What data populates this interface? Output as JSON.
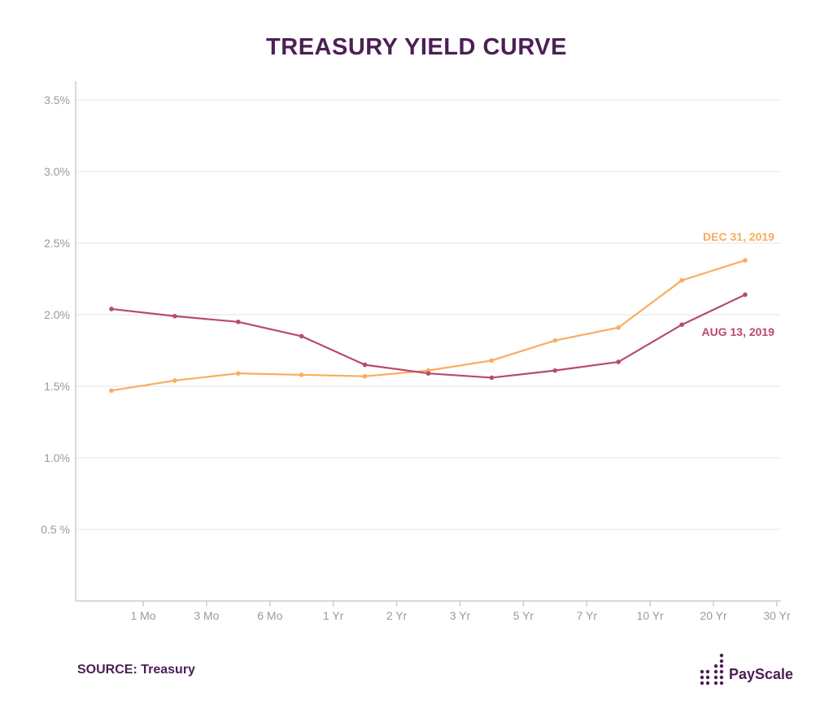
{
  "title": "TREASURY YIELD CURVE",
  "source_label": "SOURCE: Treasury",
  "brand": "PayScale",
  "colors": {
    "title": "#4b1f54",
    "dec_series": "#f9ad5f",
    "aug_series": "#b84a6e",
    "grid": "#e4e1e8",
    "axis": "#cfcad6",
    "tick_label": "#9b97a4"
  },
  "chart_data": {
    "type": "line",
    "title": "TREASURY YIELD CURVE",
    "x_tick_labels": [
      "1 Mo",
      "3 Mo",
      "6 Mo",
      "1 Yr",
      "2 Yr",
      "3 Yr",
      "5 Yr",
      "7 Yr",
      "10 Yr",
      "20 Yr",
      "30 Yr"
    ],
    "y_ticks": [
      {
        "value": 0.5,
        "label": "0.5 %"
      },
      {
        "value": 1.0,
        "label": "1.0%"
      },
      {
        "value": 1.5,
        "label": "1.5%"
      },
      {
        "value": 2.0,
        "label": "2.0%"
      },
      {
        "value": 2.5,
        "label": "2.5%"
      },
      {
        "value": 3.0,
        "label": "3.0%"
      },
      {
        "value": 3.5,
        "label": "3.5%"
      }
    ],
    "ylim": [
      0,
      3.5
    ],
    "grid": true,
    "series": [
      {
        "name": "DEC 31, 2019",
        "color": "#f9ad5f",
        "values": [
          1.47,
          1.54,
          1.59,
          1.58,
          1.57,
          1.61,
          1.68,
          1.82,
          1.91,
          2.24,
          2.38
        ]
      },
      {
        "name": "AUG 13, 2019",
        "color": "#b84a6e",
        "values": [
          2.04,
          1.99,
          1.95,
          1.85,
          1.65,
          1.59,
          1.56,
          1.61,
          1.67,
          1.93,
          2.14
        ]
      }
    ]
  }
}
